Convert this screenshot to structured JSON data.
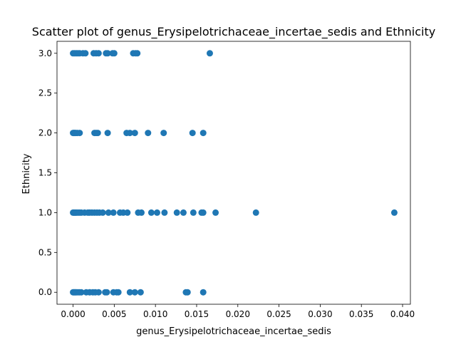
{
  "chart_data": {
    "type": "scatter",
    "title": "Scatter plot of genus_Erysipelotrichaceae_incertae_sedis and Ethnicity",
    "xlabel": "genus_Erysipelotrichaceae_incertae_sedis",
    "ylabel": "Ethnicity",
    "xlim": [
      -0.00195,
      0.04095
    ],
    "ylim": [
      -0.15,
      3.15
    ],
    "x_ticks": [
      0.0,
      0.005,
      0.01,
      0.015,
      0.02,
      0.025,
      0.03,
      0.035,
      0.04
    ],
    "x_tick_labels": [
      "0.000",
      "0.005",
      "0.010",
      "0.015",
      "0.020",
      "0.025",
      "0.030",
      "0.035",
      "0.040"
    ],
    "y_ticks": [
      0.0,
      0.5,
      1.0,
      1.5,
      2.0,
      2.5,
      3.0
    ],
    "y_tick_labels": [
      "0.0",
      "0.5",
      "1.0",
      "1.5",
      "2.0",
      "2.5",
      "3.0"
    ],
    "grid": false,
    "marker_color": "#1f77b4",
    "series": [
      {
        "points": [
          [
            0.0,
            3
          ],
          [
            0.0002,
            3
          ],
          [
            0.0004,
            3
          ],
          [
            0.0006,
            3
          ],
          [
            0.0008,
            3
          ],
          [
            0.0012,
            3
          ],
          [
            0.0015,
            3
          ],
          [
            0.0025,
            3
          ],
          [
            0.0028,
            3
          ],
          [
            0.0031,
            3
          ],
          [
            0.004,
            3
          ],
          [
            0.0042,
            3
          ],
          [
            0.0048,
            3
          ],
          [
            0.005,
            3
          ],
          [
            0.0073,
            3
          ],
          [
            0.0076,
            3
          ],
          [
            0.0078,
            3
          ],
          [
            0.0166,
            3
          ],
          [
            0.0,
            2
          ],
          [
            0.0001,
            2
          ],
          [
            0.0002,
            2
          ],
          [
            0.0003,
            2
          ],
          [
            0.0005,
            2
          ],
          [
            0.0008,
            2
          ],
          [
            0.0026,
            2
          ],
          [
            0.0028,
            2
          ],
          [
            0.003,
            2
          ],
          [
            0.0042,
            2
          ],
          [
            0.0065,
            2
          ],
          [
            0.0069,
            2
          ],
          [
            0.0075,
            2
          ],
          [
            0.0091,
            2
          ],
          [
            0.011,
            2
          ],
          [
            0.0145,
            2
          ],
          [
            0.0158,
            2
          ],
          [
            0.0,
            1
          ],
          [
            0.0001,
            1
          ],
          [
            0.0002,
            1
          ],
          [
            0.0003,
            1
          ],
          [
            0.0004,
            1
          ],
          [
            0.0006,
            1
          ],
          [
            0.0008,
            1
          ],
          [
            0.001,
            1
          ],
          [
            0.0014,
            1
          ],
          [
            0.0018,
            1
          ],
          [
            0.002,
            1
          ],
          [
            0.0023,
            1
          ],
          [
            0.0026,
            1
          ],
          [
            0.0029,
            1
          ],
          [
            0.0032,
            1
          ],
          [
            0.0036,
            1
          ],
          [
            0.0043,
            1
          ],
          [
            0.0049,
            1
          ],
          [
            0.0057,
            1
          ],
          [
            0.0061,
            1
          ],
          [
            0.0066,
            1
          ],
          [
            0.0079,
            1
          ],
          [
            0.0083,
            1
          ],
          [
            0.0095,
            1
          ],
          [
            0.0102,
            1
          ],
          [
            0.0111,
            1
          ],
          [
            0.0126,
            1
          ],
          [
            0.0134,
            1
          ],
          [
            0.0146,
            1
          ],
          [
            0.0156,
            1
          ],
          [
            0.0158,
            1
          ],
          [
            0.0173,
            1
          ],
          [
            0.0222,
            1
          ],
          [
            0.039,
            1
          ],
          [
            0.0,
            0
          ],
          [
            0.0001,
            0
          ],
          [
            0.0002,
            0
          ],
          [
            0.0003,
            0
          ],
          [
            0.0004,
            0
          ],
          [
            0.0006,
            0
          ],
          [
            0.0008,
            0
          ],
          [
            0.001,
            0
          ],
          [
            0.0016,
            0
          ],
          [
            0.002,
            0
          ],
          [
            0.0024,
            0
          ],
          [
            0.0027,
            0
          ],
          [
            0.0031,
            0
          ],
          [
            0.0039,
            0
          ],
          [
            0.0041,
            0
          ],
          [
            0.0049,
            0
          ],
          [
            0.0053,
            0
          ],
          [
            0.0055,
            0
          ],
          [
            0.0069,
            0
          ],
          [
            0.0075,
            0
          ],
          [
            0.0082,
            0
          ],
          [
            0.0137,
            0
          ],
          [
            0.0139,
            0
          ],
          [
            0.0158,
            0
          ]
        ]
      }
    ]
  }
}
